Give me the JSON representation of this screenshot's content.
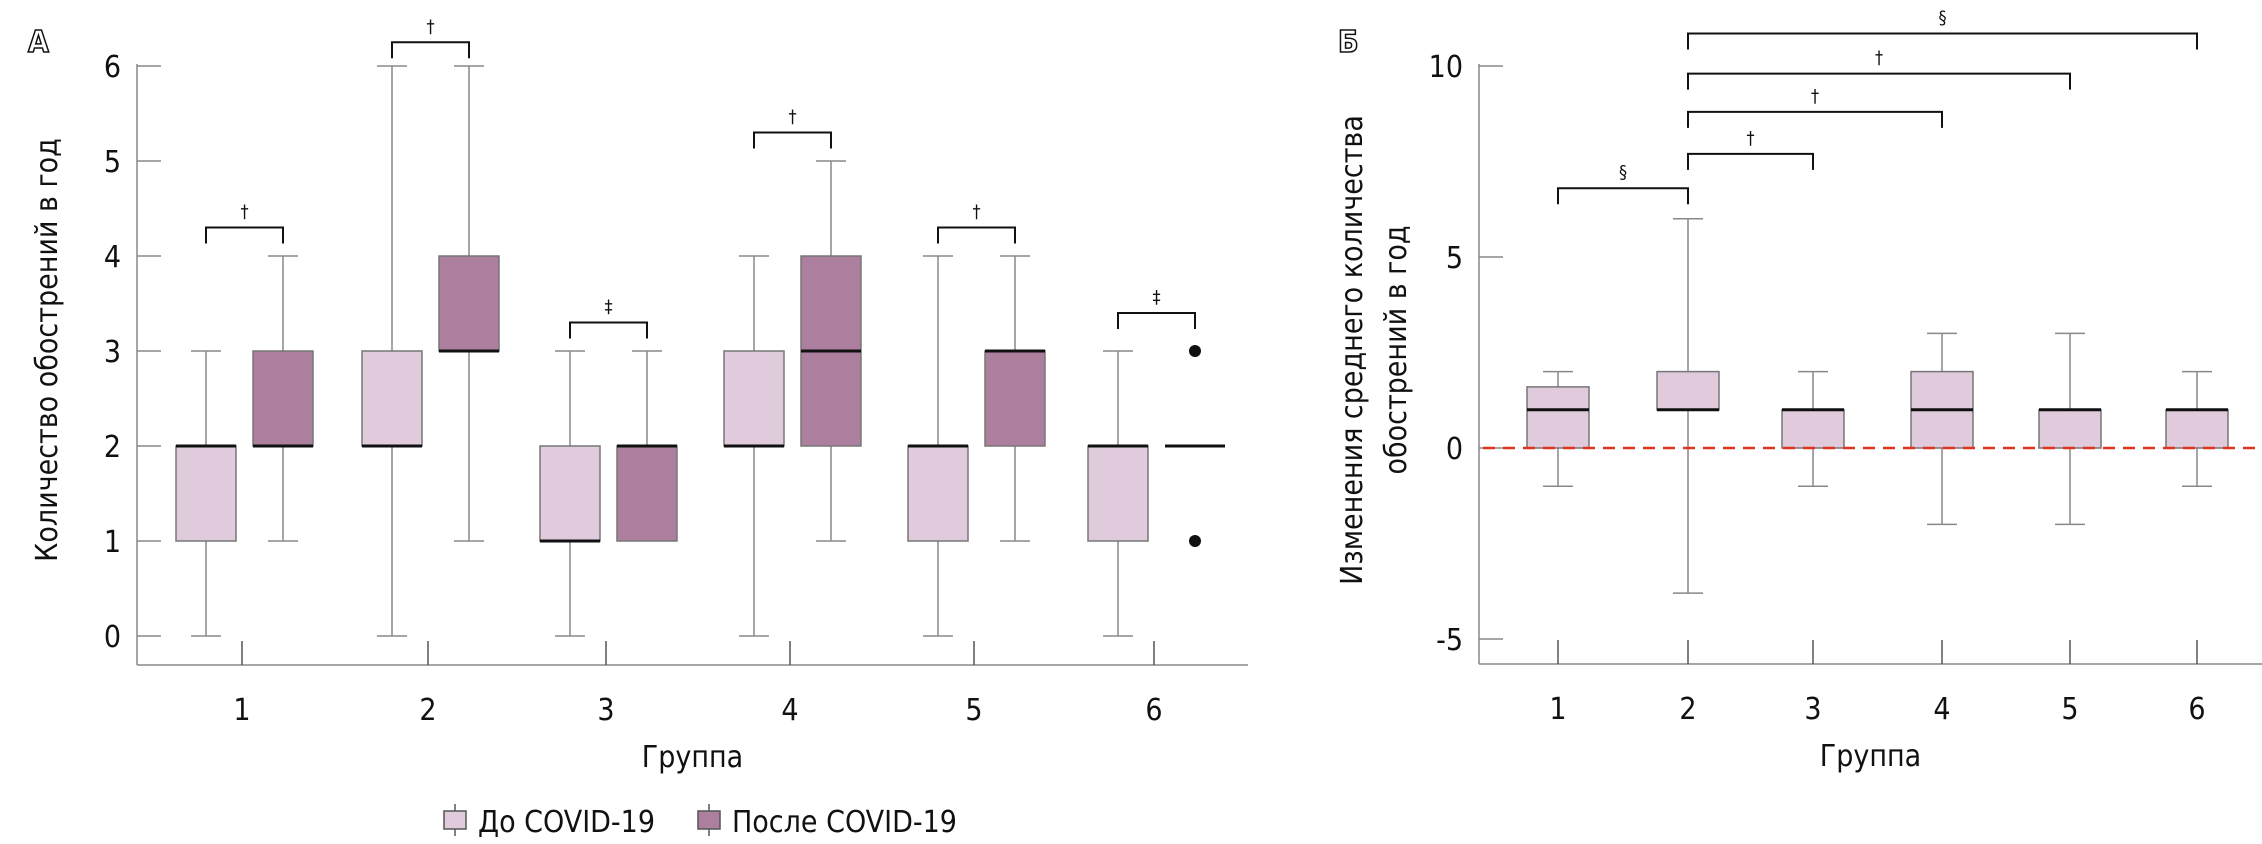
{
  "chart_data": [
    {
      "type": "box",
      "panel_label": "А",
      "xlabel": "Группа",
      "ylabel": "Количество обострений в год",
      "ylim": [
        0,
        6
      ],
      "yticks": [
        0,
        1,
        2,
        3,
        4,
        5,
        6
      ],
      "categories": [
        "1",
        "2",
        "3",
        "4",
        "5",
        "6"
      ],
      "legend_position": "bottom",
      "series": [
        {
          "name": "До COVID-19",
          "color": "#dfcbdb",
          "boxes": [
            {
              "min": 0,
              "q1": 1,
              "median": 2,
              "q3": 2,
              "max": 3
            },
            {
              "min": 0,
              "q1": 2,
              "median": 2,
              "q3": 3,
              "max": 6
            },
            {
              "min": 0,
              "q1": 1,
              "median": 1,
              "q3": 2,
              "max": 3
            },
            {
              "min": 0,
              "q1": 2,
              "median": 2,
              "q3": 3,
              "max": 4
            },
            {
              "min": 0,
              "q1": 1,
              "median": 2,
              "q3": 2,
              "max": 4
            },
            {
              "min": 0,
              "q1": 1,
              "median": 2,
              "q3": 2,
              "max": 3
            }
          ]
        },
        {
          "name": "После COVID-19",
          "color": "#ad7f9f",
          "boxes": [
            {
              "min": 1,
              "q1": 2,
              "median": 2,
              "q3": 3,
              "max": 4
            },
            {
              "min": 1,
              "q1": 3,
              "median": 3,
              "q3": 4,
              "max": 6
            },
            {
              "min": 1,
              "q1": 1,
              "median": 2,
              "q3": 2,
              "max": 3
            },
            {
              "min": 1,
              "q1": 2,
              "median": 3,
              "q3": 4,
              "max": 5
            },
            {
              "min": 1,
              "q1": 2,
              "median": 3,
              "q3": 3,
              "max": 4
            },
            {
              "min": 2,
              "q1": 2,
              "median": 2,
              "q3": 2,
              "max": 2,
              "outliers": [
                1,
                3
              ]
            }
          ]
        }
      ],
      "significance": [
        {
          "group": "1",
          "mark": "†",
          "level": 4.3
        },
        {
          "group": "2",
          "mark": "†",
          "level": 6.25
        },
        {
          "group": "3",
          "mark": "‡",
          "level": 3.3
        },
        {
          "group": "4",
          "mark": "†",
          "level": 5.3
        },
        {
          "group": "5",
          "mark": "†",
          "level": 4.3
        },
        {
          "group": "6",
          "mark": "‡",
          "level": 3.4
        }
      ]
    },
    {
      "type": "box",
      "panel_label": "Б",
      "xlabel": "Группа",
      "ylabel": [
        "Изменения среднего количества",
        "обострений в год"
      ],
      "ylim": [
        -5.5,
        10
      ],
      "yticks": [
        -5,
        0,
        5,
        10
      ],
      "categories": [
        "1",
        "2",
        "3",
        "4",
        "5",
        "6"
      ],
      "reference_line": {
        "y": 0,
        "color": "#e0341e",
        "style": "dashed"
      },
      "color": "#dfcbdb",
      "boxes": [
        {
          "min": -1,
          "q1": 0,
          "median": 1,
          "q3": 1.6,
          "max": 2
        },
        {
          "min": -3.8,
          "q1": 1,
          "median": 1,
          "q3": 2,
          "max": 6
        },
        {
          "min": -1,
          "q1": 0,
          "median": 1,
          "q3": 1,
          "max": 2
        },
        {
          "min": -2,
          "q1": 0,
          "median": 1,
          "q3": 2,
          "max": 3
        },
        {
          "min": -2,
          "q1": 0,
          "median": 1,
          "q3": 1,
          "max": 3
        },
        {
          "min": -1,
          "q1": 0,
          "median": 1,
          "q3": 1,
          "max": 2
        }
      ],
      "significance": [
        {
          "from": "1",
          "to": "2",
          "mark": "§",
          "level": 6.8
        },
        {
          "from": "2",
          "to": "3",
          "mark": "†",
          "level": 7.7
        },
        {
          "from": "2",
          "to": "4",
          "mark": "†",
          "level": 8.8
        },
        {
          "from": "2",
          "to": "5",
          "mark": "†",
          "level": 9.8
        },
        {
          "from": "2",
          "to": "6",
          "mark": "§",
          "level": 10.85
        }
      ]
    }
  ]
}
